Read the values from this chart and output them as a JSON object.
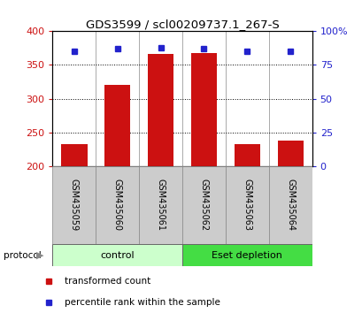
{
  "title": "GDS3599 / scl00209737.1_267-S",
  "samples": [
    "GSM435059",
    "GSM435060",
    "GSM435061",
    "GSM435062",
    "GSM435063",
    "GSM435064"
  ],
  "transformed_counts": [
    232,
    320,
    366,
    368,
    233,
    237
  ],
  "percentile_ranks_pct": [
    85,
    87,
    88,
    87,
    85,
    85
  ],
  "bar_color": "#cc1111",
  "dot_color": "#2222cc",
  "ylim_left": [
    200,
    400
  ],
  "ylim_right": [
    0,
    100
  ],
  "yticks_left": [
    200,
    250,
    300,
    350,
    400
  ],
  "yticks_right": [
    0,
    25,
    50,
    75,
    100
  ],
  "groups": [
    {
      "label": "control",
      "indices": [
        0,
        1,
        2
      ],
      "color": "#ccffcc"
    },
    {
      "label": "Eset depletion",
      "indices": [
        3,
        4,
        5
      ],
      "color": "#44dd44"
    }
  ],
  "protocol_label": "protocol",
  "legend": [
    {
      "label": "transformed count",
      "color": "#cc1111"
    },
    {
      "label": "percentile rank within the sample",
      "color": "#2222cc"
    }
  ],
  "bar_width": 0.6,
  "bg_color": "#ffffff",
  "tick_label_color": "#cccccc"
}
